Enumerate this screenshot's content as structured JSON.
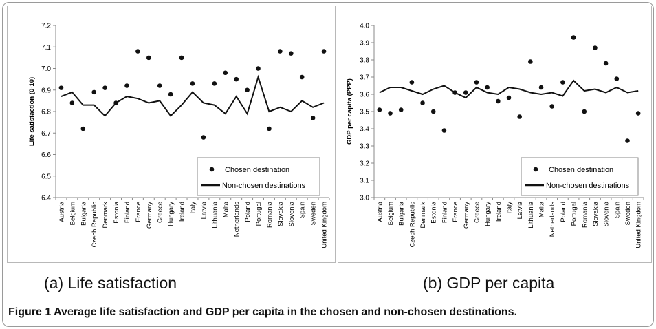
{
  "figure": {
    "subcaption_a": "(a) Life satisfaction",
    "subcaption_b": "(b) GDP per capita",
    "caption": "Figure 1 Average life satisfaction and GDP per capita in the chosen and non-chosen destinations."
  },
  "chart_data": [
    {
      "type": "line",
      "ylabel": "Life satisfaction (0-10)",
      "xlabel": "",
      "ylim": [
        6.4,
        7.2
      ],
      "yticks": [
        "6.4",
        "6.5",
        "6.6",
        "6.7",
        "6.8",
        "6.9",
        "7.0",
        "7.1",
        "7.2"
      ],
      "grid": false,
      "legend": "bottom-right",
      "categories": [
        "Austria",
        "Belgium",
        "Bulgaria",
        "Czech Republic",
        "Denmark",
        "Estonia",
        "Finland",
        "France",
        "Germany",
        "Greece",
        "Hungary",
        "Ireland",
        "Italy",
        "Latvia",
        "Lithuania",
        "Malta",
        "Netherlands",
        "Poland",
        "Portugal",
        "Romania",
        "Slovakia",
        "Slovenia",
        "Spain",
        "Sweden",
        "United Kingdom"
      ],
      "series": [
        {
          "name": "Chosen destination",
          "style": "markers",
          "values": [
            6.91,
            6.84,
            6.72,
            6.89,
            6.91,
            6.84,
            6.92,
            7.08,
            7.05,
            6.92,
            6.88,
            7.05,
            6.93,
            6.68,
            6.93,
            6.98,
            6.95,
            6.9,
            7.0,
            6.72,
            7.08,
            7.07,
            6.96,
            6.77,
            7.08
          ]
        },
        {
          "name": "Non-chosen destinations",
          "style": "line",
          "values": [
            6.87,
            6.89,
            6.83,
            6.83,
            6.78,
            6.84,
            6.87,
            6.86,
            6.84,
            6.85,
            6.78,
            6.83,
            6.89,
            6.84,
            6.83,
            6.79,
            6.87,
            6.79,
            6.96,
            6.8,
            6.82,
            6.8,
            6.85,
            6.82,
            6.84
          ]
        }
      ]
    },
    {
      "type": "line",
      "ylabel": "GDP per capita (PPP)",
      "xlabel": "",
      "ylim": [
        3.0,
        4.0
      ],
      "yticks": [
        "3.0",
        "3.1",
        "3.2",
        "3.3",
        "3.4",
        "3.5",
        "3.6",
        "3.7",
        "3.8",
        "3.9",
        "4.0"
      ],
      "grid": false,
      "legend": "bottom-right",
      "categories": [
        "Austria",
        "Belgium",
        "Bulgaria",
        "Czech Republic",
        "Denmark",
        "Estonia",
        "Finland",
        "France",
        "Germany",
        "Greece",
        "Hungary",
        "Ireland",
        "Italy",
        "Latvia",
        "Lithuania",
        "Malta",
        "Netherlands",
        "Poland",
        "Portugal",
        "Romania",
        "Slovakia",
        "Slovenia",
        "Spain",
        "Sweden",
        "United Kingdom"
      ],
      "series": [
        {
          "name": "Chosen destination",
          "style": "markers",
          "values": [
            3.51,
            3.49,
            3.51,
            3.67,
            3.55,
            3.5,
            3.39,
            3.61,
            3.61,
            3.67,
            3.64,
            3.56,
            3.58,
            3.47,
            3.79,
            3.64,
            3.53,
            3.67,
            3.93,
            3.5,
            3.87,
            3.78,
            3.69,
            3.33,
            3.49
          ]
        },
        {
          "name": "Non-chosen destinations",
          "style": "line",
          "values": [
            3.61,
            3.64,
            3.64,
            3.62,
            3.6,
            3.63,
            3.65,
            3.61,
            3.58,
            3.64,
            3.61,
            3.6,
            3.64,
            3.63,
            3.61,
            3.6,
            3.61,
            3.59,
            3.68,
            3.62,
            3.63,
            3.61,
            3.64,
            3.61,
            3.62
          ]
        }
      ]
    }
  ]
}
